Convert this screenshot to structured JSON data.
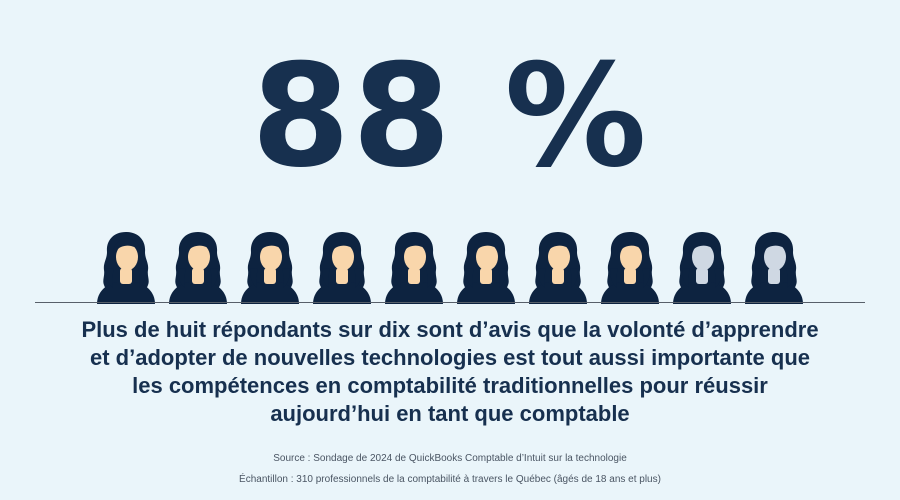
{
  "stat": {
    "value": "88 %",
    "filled_count": 8,
    "total_count": 10
  },
  "headline": "Plus de huit répondants sur dix sont d’avis que la volonté d’apprendre et d’adopter de nouvelles technologies est tout aussi importante que les compétences en comptabilité traditionnelles pour réussir aujourd’hui en tant que comptable",
  "footnotes": {
    "source": "Source : Sondage de 2024 de QuickBooks Comptable d’Intuit sur la technologie",
    "sample": "Échantillon : 310 professionnels de la comptabilité à travers le Québec (âgés de 18 ans et plus)"
  },
  "icons": {
    "person": "person-icon"
  },
  "colors": {
    "background": "#eaf5fa",
    "primary": "#17304f",
    "hair": "#0d2340",
    "skin_filled": "#f9d6ab",
    "skin_empty": "#cfd8e3"
  }
}
